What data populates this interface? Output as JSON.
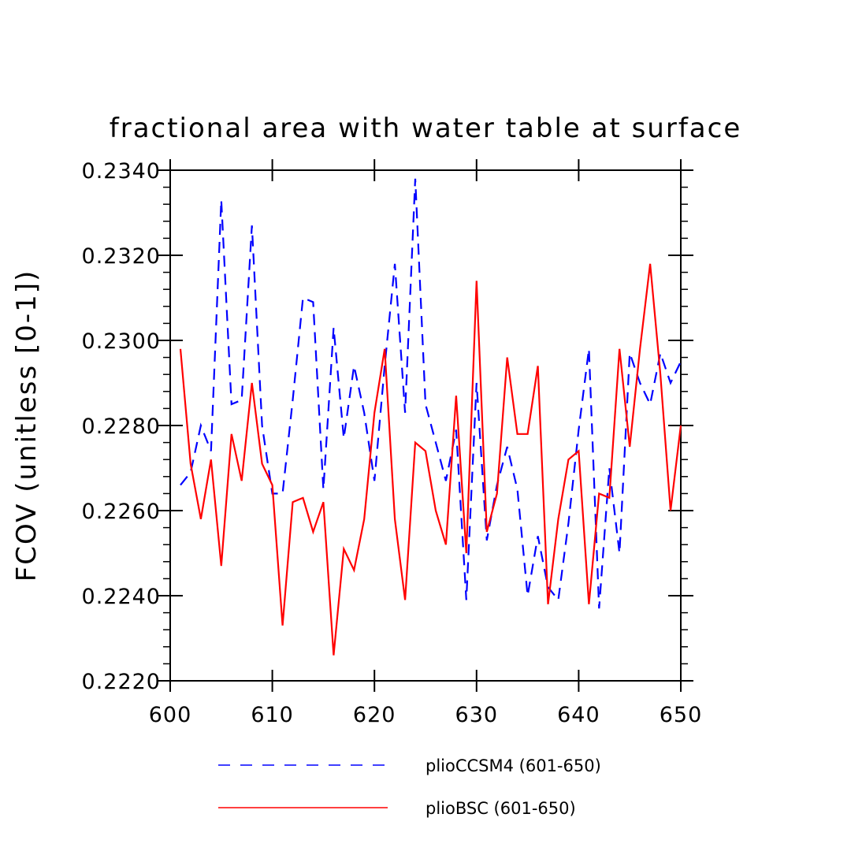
{
  "chart_data": {
    "type": "line",
    "title": "fractional area with water table at surface",
    "xlabel": "",
    "ylabel": "FCOV  (unitless [0-1])",
    "xlim": [
      600,
      650
    ],
    "ylim": [
      0.222,
      0.234
    ],
    "x_ticks": [
      "600",
      "610",
      "620",
      "630",
      "640",
      "650"
    ],
    "y_ticks": [
      "0.2220",
      "0.2240",
      "0.2260",
      "0.2280",
      "0.2300",
      "0.2320",
      "0.2340"
    ],
    "grid": false,
    "legend_position": "bottom",
    "series": [
      {
        "name": "plioCCSM4 (601-650)",
        "color": "#0000ff",
        "style": "dashed",
        "x": [
          601,
          602,
          603,
          604,
          605,
          606,
          607,
          608,
          609,
          610,
          611,
          612,
          613,
          614,
          615,
          616,
          617,
          618,
          619,
          620,
          621,
          622,
          623,
          624,
          625,
          626,
          627,
          628,
          629,
          630,
          631,
          632,
          633,
          634,
          635,
          636,
          637,
          638,
          639,
          640,
          641,
          642,
          643,
          644,
          645,
          646,
          647,
          648,
          649,
          650
        ],
        "y": [
          0.2266,
          0.2269,
          0.228,
          0.2274,
          0.2333,
          0.2285,
          0.2286,
          0.2327,
          0.228,
          0.2264,
          0.2264,
          0.2286,
          0.231,
          0.2309,
          0.2265,
          0.2303,
          0.2277,
          0.2294,
          0.2283,
          0.2267,
          0.2294,
          0.2318,
          0.2283,
          0.2338,
          0.2285,
          0.2276,
          0.2267,
          0.2279,
          0.2239,
          0.229,
          0.2253,
          0.2266,
          0.2275,
          0.2265,
          0.224,
          0.2254,
          0.2242,
          0.2239,
          0.2257,
          0.2279,
          0.2298,
          0.2237,
          0.227,
          0.225,
          0.2297,
          0.229,
          0.2285,
          0.2297,
          0.229,
          0.2295
        ]
      },
      {
        "name": "plioBSC (601-650)",
        "color": "#ff0000",
        "style": "solid",
        "x": [
          601,
          602,
          603,
          604,
          605,
          606,
          607,
          608,
          609,
          610,
          611,
          612,
          613,
          614,
          615,
          616,
          617,
          618,
          619,
          620,
          621,
          622,
          623,
          624,
          625,
          626,
          627,
          628,
          629,
          630,
          631,
          632,
          633,
          634,
          635,
          636,
          637,
          638,
          639,
          640,
          641,
          642,
          643,
          644,
          645,
          646,
          647,
          648,
          649,
          650
        ],
        "y": [
          0.2298,
          0.2271,
          0.2258,
          0.2272,
          0.2247,
          0.2278,
          0.2267,
          0.229,
          0.2271,
          0.2266,
          0.2233,
          0.2262,
          0.2263,
          0.2255,
          0.2262,
          0.2226,
          0.2251,
          0.2246,
          0.2258,
          0.2283,
          0.2298,
          0.2258,
          0.2239,
          0.2276,
          0.2274,
          0.226,
          0.2252,
          0.2287,
          0.225,
          0.2314,
          0.2255,
          0.2264,
          0.2296,
          0.2278,
          0.2278,
          0.2294,
          0.2238,
          0.2258,
          0.2272,
          0.2274,
          0.2238,
          0.2264,
          0.2263,
          0.2298,
          0.2275,
          0.2298,
          0.2318,
          0.2292,
          0.226,
          0.228
        ]
      }
    ]
  }
}
